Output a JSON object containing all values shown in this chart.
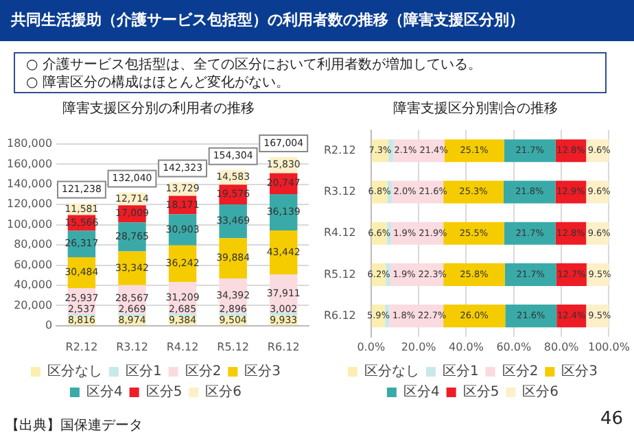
{
  "chart_data": [
    {
      "type": "bar",
      "stacked": true,
      "title": "障害支援区分別の利用者の推移",
      "categories": [
        "R2.12",
        "R3.12",
        "R4.12",
        "R5.12",
        "R6.12"
      ],
      "series": [
        {
          "name": "区分なし",
          "color": "#fbeeb0",
          "values": [
            8816,
            8974,
            9384,
            9504,
            9933
          ],
          "value_labels": [
            "8,816",
            "8,974",
            "9,384",
            "9,504",
            "9,933"
          ]
        },
        {
          "name": "区分1",
          "color": "#c8e9ea",
          "values": [
            2537,
            2669,
            2685,
            2896,
            3002
          ],
          "value_labels": [
            "2,537",
            "2,669",
            "2,685",
            "2,896",
            "3,002"
          ]
        },
        {
          "name": "区分2",
          "color": "#fadbe0",
          "values": [
            25937,
            28567,
            31209,
            34392,
            37911
          ],
          "value_labels": [
            "25,937",
            "28,567",
            "31,209",
            "34,392",
            "37,911"
          ]
        },
        {
          "name": "区分3",
          "color": "#f5cc00",
          "values": [
            30484,
            33342,
            36242,
            39884,
            43442
          ],
          "value_labels": [
            "30,484",
            "33,342",
            "36,242",
            "39,884",
            "43,442"
          ]
        },
        {
          "name": "区分4",
          "color": "#3aaaa8",
          "values": [
            26317,
            28765,
            30903,
            33469,
            36139
          ],
          "value_labels": [
            "26,317",
            "28,765",
            "30,903",
            "33,469",
            "36,139"
          ]
        },
        {
          "name": "区分5",
          "color": "#ee1c25",
          "values": [
            15566,
            17009,
            18171,
            19576,
            20747
          ],
          "value_labels": [
            "15,566",
            "17,009",
            "18,171",
            "19,576",
            "20,747"
          ]
        },
        {
          "name": "区分6",
          "color": "#fdf0c8",
          "values": [
            11581,
            12714,
            13729,
            14583,
            15830
          ],
          "value_labels": [
            "11,581",
            "12,714",
            "13,729",
            "14,583",
            "15,830"
          ]
        }
      ],
      "ylim": [
        0,
        180000
      ],
      "yticks": [
        {
          "value": 0,
          "label": "0"
        },
        {
          "value": 20000,
          "label": "20,000"
        },
        {
          "value": 40000,
          "label": "40,000"
        },
        {
          "value": 60000,
          "label": "60,000"
        },
        {
          "value": 80000,
          "label": "80,000"
        },
        {
          "value": 100000,
          "label": "100,000"
        },
        {
          "value": 120000,
          "label": "120,000"
        },
        {
          "value": 140000,
          "label": "140,000"
        },
        {
          "value": 160000,
          "label": "160,000"
        },
        {
          "value": 180000,
          "label": "180,000"
        }
      ],
      "grid": "y",
      "legend": "bottom",
      "totals": [
        "121,238",
        "132,040",
        "142,323",
        "154,304",
        "167,004"
      ],
      "annotations": [
        "共同生活援助（介護サービス包括型）の利用者数の推移（障害支援区分別）",
        "○ 介護サービス包括型は、全ての区分において利用者数が増加している。",
        "○ 障害区分の構成はほとんど変化がない。",
        "【出典】国保連データ"
      ]
    },
    {
      "type": "bar",
      "stacked": true,
      "orientation": "horizontal",
      "title": "障害支援区分別割合の推移",
      "categories": [
        "R2.12",
        "R3.12",
        "R4.12",
        "R5.12",
        "R6.12"
      ],
      "series": [
        {
          "name": "区分なし",
          "color": "#fbeeb0",
          "values": [
            7.3,
            6.8,
            6.6,
            6.2,
            5.9
          ],
          "value_labels": [
            "7.3%",
            "6.8%",
            "6.6%",
            "6.2%",
            "5.9%"
          ]
        },
        {
          "name": "区分1",
          "color": "#c8e9ea",
          "values": [
            2.1,
            2.0,
            1.9,
            1.9,
            1.8
          ],
          "value_labels": [
            "2.1%",
            "2.0%",
            "1.9%",
            "1.9%",
            "1.8%"
          ]
        },
        {
          "name": "区分2",
          "color": "#fadbe0",
          "values": [
            21.4,
            21.6,
            21.9,
            22.3,
            22.7
          ],
          "value_labels": [
            "21.4%",
            "21.6%",
            "21.9%",
            "22.3%",
            "22.7%"
          ]
        },
        {
          "name": "区分3",
          "color": "#f5cc00",
          "values": [
            25.1,
            25.3,
            25.5,
            25.8,
            26.0
          ],
          "value_labels": [
            "25.1%",
            "25.3%",
            "25.5%",
            "25.8%",
            "26.0%"
          ]
        },
        {
          "name": "区分4",
          "color": "#3aaaa8",
          "values": [
            21.7,
            21.8,
            21.7,
            21.7,
            21.6
          ],
          "value_labels": [
            "21.7%",
            "21.8%",
            "21.7%",
            "21.7%",
            "21.6%"
          ]
        },
        {
          "name": "区分5",
          "color": "#ee1c25",
          "values": [
            12.8,
            12.9,
            12.8,
            12.7,
            12.4
          ],
          "value_labels": [
            "12.8%",
            "12.9%",
            "12.8%",
            "12.7%",
            "12.4%"
          ]
        },
        {
          "name": "区分6",
          "color": "#fdf0c8",
          "values": [
            9.6,
            9.6,
            9.6,
            9.5,
            9.5
          ],
          "value_labels": [
            "9.6%",
            "9.6%",
            "9.6%",
            "9.5%",
            "9.5%"
          ]
        }
      ],
      "xlim": [
        0,
        100
      ],
      "xticks": [
        {
          "value": 0,
          "label": "0.0%"
        },
        {
          "value": 20,
          "label": "20.0%"
        },
        {
          "value": 40,
          "label": "40.0%"
        },
        {
          "value": 60,
          "label": "60.0%"
        },
        {
          "value": 80,
          "label": "80.0%"
        },
        {
          "value": 100,
          "label": "100.0%"
        }
      ],
      "grid": "x",
      "legend": "bottom",
      "annotations": [
        "46"
      ]
    }
  ]
}
